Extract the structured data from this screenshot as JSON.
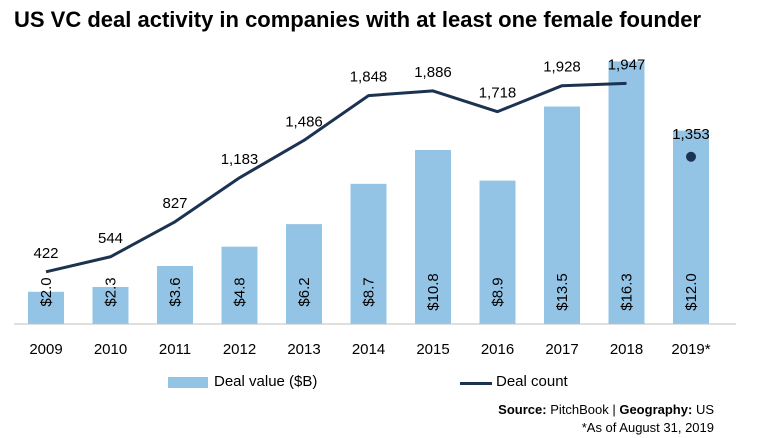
{
  "title": "US VC deal activity in companies with at least one female founder",
  "chart_data": {
    "type": "bar",
    "categories": [
      "2009",
      "2010",
      "2011",
      "2012",
      "2013",
      "2014",
      "2015",
      "2016",
      "2017",
      "2018",
      "2019*"
    ],
    "series": [
      {
        "name": "Deal value ($B)",
        "type": "bar",
        "axis": "left",
        "values": [
          2.0,
          2.3,
          3.6,
          4.8,
          6.2,
          8.7,
          10.8,
          8.9,
          13.5,
          16.3,
          12.0
        ],
        "labels": [
          "$2.0",
          "$2.3",
          "$3.6",
          "$4.8",
          "$6.2",
          "$8.7",
          "$10.8",
          "$8.9",
          "$13.5",
          "$16.3",
          "$12.0"
        ],
        "color": "#94c4e5"
      },
      {
        "name": "Deal count",
        "type": "line",
        "axis": "right",
        "values": [
          422,
          544,
          827,
          1183,
          1486,
          1848,
          1886,
          1718,
          1928,
          1947,
          1353
        ],
        "labels": [
          "422",
          "544",
          "827",
          "1,183",
          "1,486",
          "1,848",
          "1,886",
          "1,718",
          "1,928",
          "1,947",
          "1,353"
        ],
        "color": "#1b3350",
        "last_point_as_marker": true
      }
    ],
    "ylim_left": [
      0,
      18
    ],
    "ylim_right": [
      0,
      2500
    ],
    "grid": false,
    "legend_position": "bottom"
  },
  "legend": {
    "bar_label": "Deal value ($B)",
    "line_label": "Deal count"
  },
  "source": {
    "label": "Source:",
    "value": "PitchBook |",
    "geo_label": "Geography:",
    "geo_value": "US"
  },
  "footnote": "*As of August 31, 2019"
}
